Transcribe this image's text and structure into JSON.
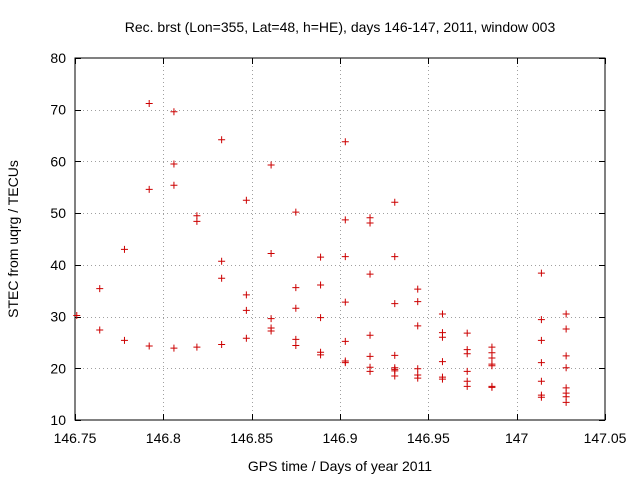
{
  "chart_data": {
    "type": "scatter",
    "title": "Rec. brst (Lon=355, Lat=48, h=HE), days 146-147, 2011, window 003",
    "xlabel": "GPS time / Days of year 2011",
    "ylabel": "STEC from uqrg / TECUs",
    "xlim": [
      146.75,
      147.05
    ],
    "ylim": [
      10,
      80
    ],
    "grid": true,
    "marker": "plus",
    "x_ticks": [
      146.75,
      146.8,
      146.85,
      146.9,
      146.95,
      147,
      147.05
    ],
    "x_tick_labels": [
      "146.75",
      "146.8",
      "146.85",
      "146.9",
      "146.95",
      "147",
      "147.05"
    ],
    "y_ticks": [
      10,
      20,
      30,
      40,
      50,
      60,
      70,
      80
    ],
    "y_tick_labels": [
      "10",
      "20",
      "30",
      "40",
      "50",
      "60",
      "70",
      "80"
    ],
    "series": [
      {
        "name": "STEC",
        "color": "#cc0000",
        "points": [
          [
            146.751,
            30.2
          ],
          [
            146.764,
            35.4
          ],
          [
            146.764,
            27.4
          ],
          [
            146.778,
            43.0
          ],
          [
            146.778,
            25.4
          ],
          [
            146.792,
            71.2
          ],
          [
            146.792,
            54.6
          ],
          [
            146.792,
            24.3
          ],
          [
            146.806,
            69.6
          ],
          [
            146.806,
            59.5
          ],
          [
            146.806,
            55.4
          ],
          [
            146.806,
            23.9
          ],
          [
            146.819,
            49.5
          ],
          [
            146.819,
            48.4
          ],
          [
            146.819,
            24.1
          ],
          [
            146.833,
            64.2
          ],
          [
            146.833,
            40.7
          ],
          [
            146.833,
            37.4
          ],
          [
            146.833,
            24.6
          ],
          [
            146.847,
            52.5
          ],
          [
            146.847,
            34.2
          ],
          [
            146.847,
            31.2
          ],
          [
            146.847,
            25.8
          ],
          [
            146.861,
            59.3
          ],
          [
            146.861,
            42.2
          ],
          [
            146.861,
            29.6
          ],
          [
            146.861,
            27.8
          ],
          [
            146.861,
            27.2
          ],
          [
            146.875,
            50.2
          ],
          [
            146.875,
            35.6
          ],
          [
            146.875,
            31.6
          ],
          [
            146.875,
            25.6
          ],
          [
            146.875,
            24.4
          ],
          [
            146.889,
            41.5
          ],
          [
            146.889,
            36.1
          ],
          [
            146.889,
            29.8
          ],
          [
            146.889,
            23.1
          ],
          [
            146.889,
            22.6
          ],
          [
            146.903,
            63.8
          ],
          [
            146.903,
            48.7
          ],
          [
            146.903,
            41.6
          ],
          [
            146.903,
            32.8
          ],
          [
            146.903,
            25.2
          ],
          [
            146.903,
            21.4
          ],
          [
            146.903,
            21.1
          ],
          [
            146.917,
            49.1
          ],
          [
            146.917,
            48.1
          ],
          [
            146.917,
            38.2
          ],
          [
            146.917,
            26.4
          ],
          [
            146.917,
            22.3
          ],
          [
            146.917,
            20.2
          ],
          [
            146.917,
            19.4
          ],
          [
            146.931,
            52.1
          ],
          [
            146.931,
            41.6
          ],
          [
            146.931,
            32.5
          ],
          [
            146.931,
            22.5
          ],
          [
            146.931,
            20.1
          ],
          [
            146.931,
            19.8
          ],
          [
            146.931,
            19.5
          ],
          [
            146.931,
            18.5
          ],
          [
            146.944,
            35.3
          ],
          [
            146.944,
            32.9
          ],
          [
            146.944,
            28.2
          ],
          [
            146.944,
            19.9
          ],
          [
            146.944,
            18.7
          ],
          [
            146.944,
            18.1
          ],
          [
            146.958,
            30.5
          ],
          [
            146.958,
            26.9
          ],
          [
            146.958,
            26.0
          ],
          [
            146.958,
            21.3
          ],
          [
            146.958,
            18.3
          ],
          [
            146.958,
            17.9
          ],
          [
            146.972,
            26.8
          ],
          [
            146.972,
            23.6
          ],
          [
            146.972,
            22.8
          ],
          [
            146.972,
            19.4
          ],
          [
            146.972,
            17.5
          ],
          [
            146.972,
            16.5
          ],
          [
            146.986,
            24.1
          ],
          [
            146.986,
            23.0
          ],
          [
            146.986,
            22.0
          ],
          [
            146.986,
            20.8
          ],
          [
            146.986,
            20.5
          ],
          [
            146.986,
            16.5
          ],
          [
            146.986,
            16.3
          ],
          [
            147.014,
            38.4
          ],
          [
            147.014,
            29.4
          ],
          [
            147.014,
            25.4
          ],
          [
            147.014,
            21.1
          ],
          [
            147.014,
            17.5
          ],
          [
            147.014,
            14.8
          ],
          [
            147.014,
            14.4
          ],
          [
            147.028,
            30.5
          ],
          [
            147.028,
            27.6
          ],
          [
            147.028,
            22.4
          ],
          [
            147.028,
            20.1
          ],
          [
            147.028,
            16.2
          ],
          [
            147.028,
            15.2
          ],
          [
            147.028,
            14.5
          ],
          [
            147.028,
            13.4
          ]
        ]
      }
    ]
  }
}
